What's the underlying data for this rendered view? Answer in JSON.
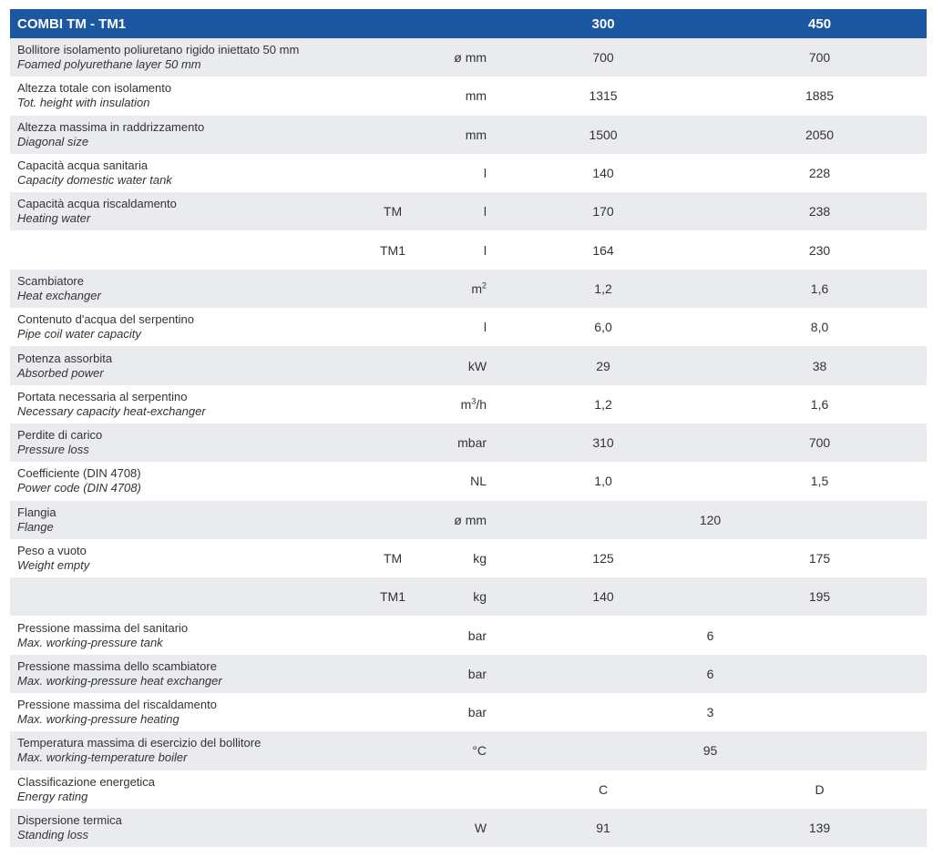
{
  "header": {
    "title": "COMBI TM - TM1",
    "col_300": "300",
    "col_450": "450"
  },
  "rows": [
    {
      "it": "Bollitore isolamento poliuretano rigido iniettato 50 mm",
      "en": "Foamed polyurethane layer 50 mm",
      "variant": "",
      "unit": "ø mm",
      "v300": "700",
      "v450": "700"
    },
    {
      "it": "Altezza totale con isolamento",
      "en": "Tot. height with insulation",
      "variant": "",
      "unit": "mm",
      "v300": "1315",
      "v450": "1885"
    },
    {
      "it": "Altezza massima in raddrizzamento",
      "en": "Diagonal size",
      "variant": "",
      "unit": "mm",
      "v300": "1500",
      "v450": "2050"
    },
    {
      "it": "Capacità acqua sanitaria",
      "en": "Capacity domestic water tank",
      "variant": "",
      "unit": "l",
      "v300": "140",
      "v450": "228"
    },
    {
      "it": "Capacità acqua riscaldamento",
      "en": "Heating water",
      "variant": "TM",
      "unit": "l",
      "v300": "170",
      "v450": "238"
    },
    {
      "it": "",
      "en": "",
      "variant": "TM1",
      "unit": "l",
      "v300": "164",
      "v450": "230"
    },
    {
      "it": "Scambiatore",
      "en": "Heat exchanger",
      "variant": "",
      "unit_base": "m",
      "unit_sup": "2",
      "v300": "1,2",
      "v450": "1,6"
    },
    {
      "it": "Contenuto d'acqua del serpentino",
      "en": "Pipe coil water capacity",
      "variant": "",
      "unit": "l",
      "v300": "6,0",
      "v450": "8,0"
    },
    {
      "it": "Potenza assorbita",
      "en": "Absorbed power",
      "variant": "",
      "unit": "kW",
      "v300": "29",
      "v450": "38"
    },
    {
      "it": "Portata necessaria al serpentino",
      "en": "Necessary capacity heat-exchanger",
      "variant": "",
      "unit_base": "m",
      "unit_sup": "3",
      "unit_tail": "/h",
      "v300": "1,2",
      "v450": "1,6"
    },
    {
      "it": "Perdite di carico",
      "en": "Pressure loss",
      "variant": "",
      "unit": "mbar",
      "v300": "310",
      "v450": "700"
    },
    {
      "it": "Coefficiente (DIN 4708)",
      "en": "Power code (DIN 4708)",
      "variant": "",
      "unit": "NL",
      "v300": "1,0",
      "v450": "1,5"
    },
    {
      "it": "Flangia",
      "en": "Flange",
      "variant": "",
      "unit": "ø mm",
      "merged": "120"
    },
    {
      "it": "Peso a vuoto",
      "en": "Weight empty",
      "variant": "TM",
      "unit": "kg",
      "v300": "125",
      "v450": "175"
    },
    {
      "it": "",
      "en": "",
      "variant": "TM1",
      "unit": "kg",
      "v300": "140",
      "v450": "195"
    },
    {
      "it": "Pressione massima del sanitario",
      "en": "Max. working-pressure tank",
      "variant": "",
      "unit": "bar",
      "merged": "6"
    },
    {
      "it": "Pressione massima dello scambiatore",
      "en": "Max. working-pressure heat exchanger",
      "variant": "",
      "unit": "bar",
      "merged": "6"
    },
    {
      "it": "Pressione massima del riscaldamento",
      "en": "Max. working-pressure heating",
      "variant": "",
      "unit": "bar",
      "merged": "3"
    },
    {
      "it": "Temperatura massima di esercizio del bollitore",
      "en": "Max. working-temperature boiler",
      "variant": "",
      "unit": "°C",
      "merged": "95"
    },
    {
      "it": "Classificazione energetica",
      "en": "Energy rating",
      "variant": "",
      "unit": "",
      "v300": "C",
      "v450": "D"
    },
    {
      "it": "Dispersione termica",
      "en": "Standing loss",
      "variant": "",
      "unit": "W",
      "v300": "91",
      "v450": "139"
    }
  ]
}
